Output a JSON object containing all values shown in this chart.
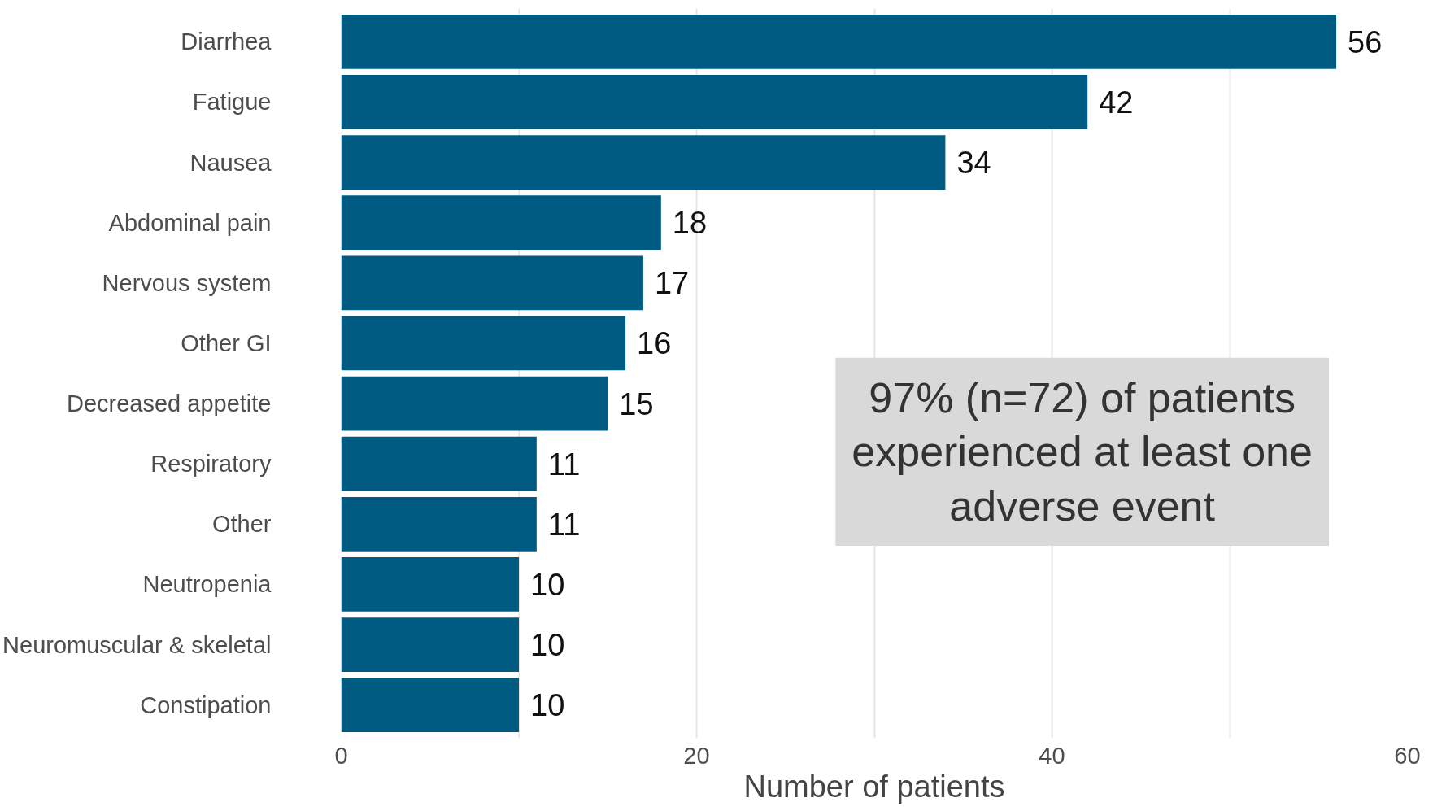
{
  "chart_data": {
    "type": "bar",
    "orientation": "horizontal",
    "xlabel": "Number of patients",
    "categories": [
      "Diarrhea",
      "Fatigue",
      "Nausea",
      "Abdominal pain",
      "Nervous system",
      "Other GI",
      "Decreased appetite",
      "Respiratory",
      "Other",
      "Neutropenia",
      "Neuromuscular & skeletal",
      "Constipation"
    ],
    "values": [
      56,
      42,
      34,
      18,
      17,
      16,
      15,
      11,
      11,
      10,
      10,
      10
    ],
    "color": "#005b82",
    "data_labels": true,
    "xlim": [
      0,
      60
    ],
    "xticks": [
      0,
      {
        "value": 10,
        "label": null
      },
      20,
      {
        "value": 30,
        "label": null
      },
      40,
      {
        "value": 50,
        "label": null
      },
      60
    ],
    "grid": "x",
    "annotations": [
      "97% (n=72) of patients experienced at least one adverse event"
    ]
  }
}
